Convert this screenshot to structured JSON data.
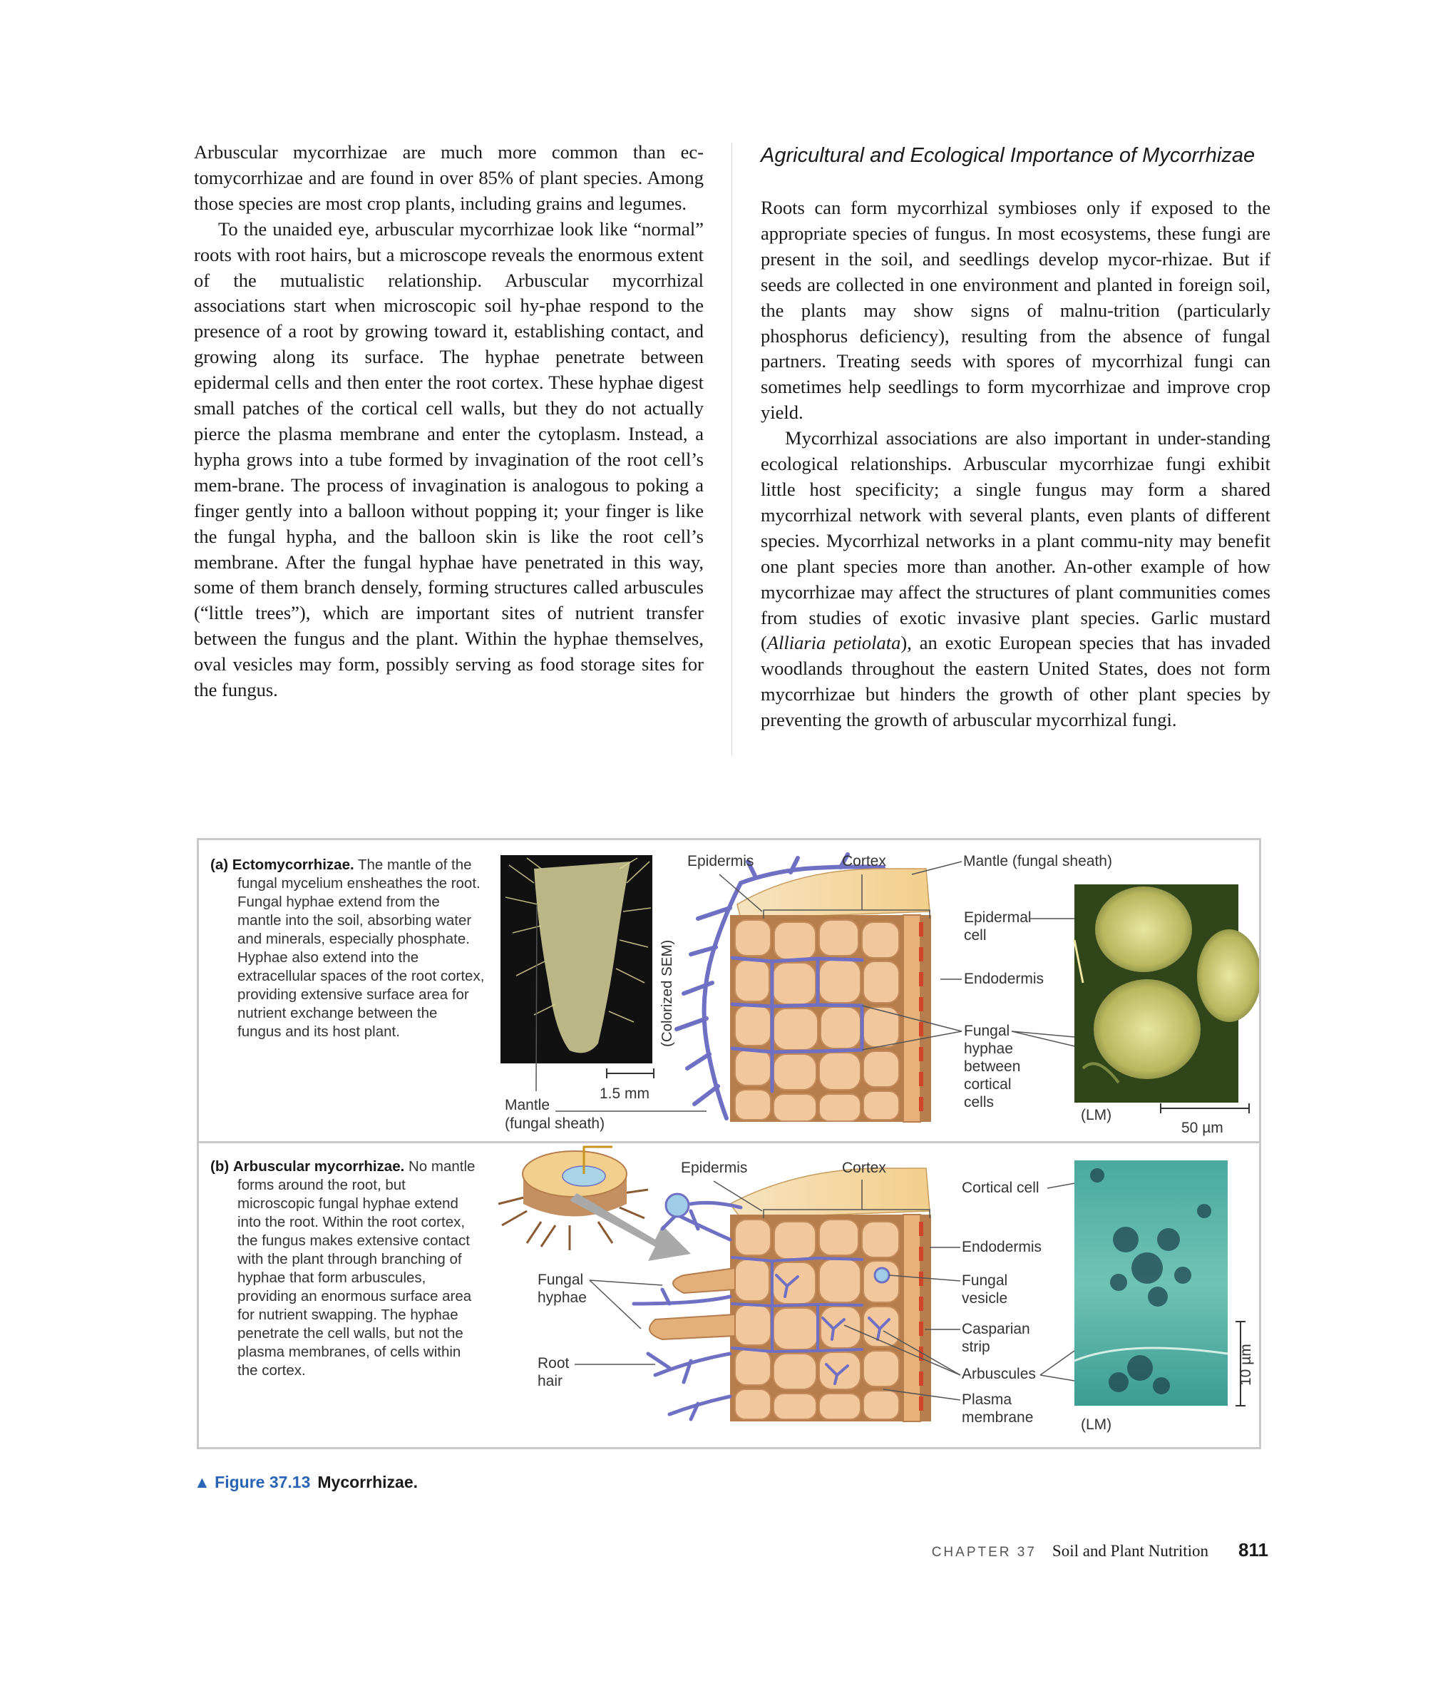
{
  "left_column": [
    "Arbuscular mycorrhizae are much more common than ec-tomycorrhizae and are found in over 85% of plant species. Among those species are most crop plants, including grains and legumes.",
    "To the unaided eye, arbuscular mycorrhizae look like “normal” roots with root hairs, but a microscope reveals the enormous extent of the mutualistic relationship. Arbuscular mycorrhizal associations start when microscopic soil hy-phae respond to the presence of a root by growing toward it, establishing contact, and growing along its surface. The hyphae penetrate between epidermal cells and then enter the root cortex. These hyphae digest small patches of the cortical cell walls, but they do not actually pierce the plasma membrane and enter the cytoplasm. Instead, a hypha grows into a tube formed by invagination of the root cell’s mem-brane. The process of invagination is analogous to poking a finger gently into a balloon without popping it; your finger is like the fungal hypha, and the balloon skin is like the root cell’s membrane. After the fungal hyphae have penetrated in this way, some of them branch densely, forming structures called arbuscules (“little trees”), which are important sites of nutrient transfer between the fungus and the plant. Within the hyphae themselves, oval vesicles may form, possibly serving as food storage sites for the fungus."
  ],
  "right_column": {
    "heading": "Agricultural and Ecological Importance of Mycorrhizae",
    "p1": "Roots can form mycorrhizal symbioses only if exposed to the appropriate species of fungus. In most ecosystems, these fungi are present in the soil, and seedlings develop mycor-rhizae. But if seeds are collected in one environment and planted in foreign soil, the plants may show signs of malnu-trition (particularly phosphorus deficiency), resulting from the absence of fungal partners. Treating seeds with spores of mycorrhizal fungi can sometimes help seedlings to form mycorrhizae and improve crop yield.",
    "p2_before": "Mycorrhizal associations are also important in under-standing ecological relationships. Arbuscular mycorrhizae fungi exhibit little host specificity; a single fungus may form a shared mycorrhizal network with several plants, even plants of different species. Mycorrhizal networks in a plant commu-nity may benefit one plant species more than another. An-other example of how mycorrhizae may affect the structures of plant communities comes from studies of exotic invasive plant species. Garlic mustard (",
    "p2_italic": "Alliaria petiolata",
    "p2_after": "), an exotic European species that has invaded woodlands throughout the eastern United States, does not form mycorrhizae but hinders the growth of other plant species by preventing the growth of arbuscular mycorrhizal fungi."
  },
  "figure": {
    "panel_a": {
      "letter": "(a)",
      "title": "Ectomycorrhizae.",
      "text": "The mantle of the fungal mycelium ensheathes the root. Fungal hyphae extend from the mantle into the soil, absorbing water and minerals, especially phosphate. Hyphae also extend into the extracellular spaces of the root cortex, providing extensive surface area for nutrient exchange between the fungus and its host plant.",
      "sem_label": "(Colorized SEM)",
      "scale_sem": "1.5 mm",
      "mantle_label_1": "Mantle",
      "mantle_label_2": "(fungal sheath)",
      "epidermis": "Epidermis",
      "cortex": "Cortex",
      "mantle_top": "Mantle (fungal sheath)",
      "epidermal_1": "Epidermal",
      "epidermal_2": "cell",
      "endodermis": "Endodermis",
      "hyphae_1": "Fungal",
      "hyphae_2": "hyphae",
      "hyphae_3": "between",
      "hyphae_4": "cortical",
      "hyphae_5": "cells",
      "lm": "(LM)",
      "scale_lm": "50 µm"
    },
    "panel_b": {
      "letter": "(b)",
      "title": "Arbuscular mycorrhizae.",
      "text": "No mantle forms around the root, but microscopic fungal hyphae extend into the root. Within the root cortex, the fungus makes extensive contact with the plant through branching of hyphae that form arbuscules, providing an enormous surface area for nutrient swapping. The hyphae penetrate the cell walls, but not the plasma membranes, of cells within the cortex.",
      "epidermis": "Epidermis",
      "cortex": "Cortex",
      "fungal_hyphae_1": "Fungal",
      "fungal_hyphae_2": "hyphae",
      "root_hair_1": "Root",
      "root_hair_2": "hair",
      "cortical_cell": "Cortical cell",
      "endodermis": "Endodermis",
      "vesicle_1": "Fungal",
      "vesicle_2": "vesicle",
      "casparian_1": "Casparian",
      "casparian_2": "strip",
      "arbuscules": "Arbuscules",
      "plasma_1": "Plasma",
      "plasma_2": "membrane",
      "lm": "(LM)",
      "scale_lm": "10 µm"
    },
    "caption_number": "▲ Figure 37.13",
    "caption_title": "Mycorrhizae."
  },
  "footer": {
    "chapter": "CHAPTER 37",
    "title": "Soil and Plant Nutrition",
    "page": "811"
  },
  "colors": {
    "hyphae": "#6f6fc4",
    "cell_fill": "#f3c79c",
    "cell_stroke": "#b07a4d",
    "caption_blue": "#2a64b5",
    "border_gray": "#c9c9c9"
  }
}
